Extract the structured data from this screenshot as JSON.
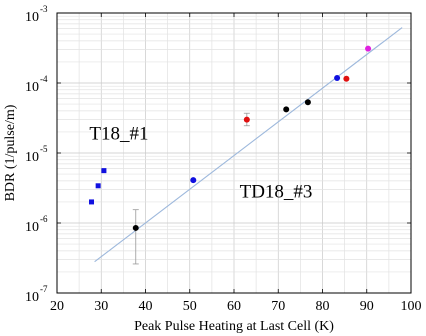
{
  "chart_data": {
    "type": "scatter",
    "xlabel": "Peak Pulse Heating at Last Cell (K)",
    "ylabel": "BDR (1/pulse/m)",
    "xlim": [
      20,
      100
    ],
    "ylim_log10": [
      -7,
      -3
    ],
    "y_scale": "log",
    "grid": true,
    "x_ticks": [
      "20",
      "30",
      "40",
      "50",
      "60",
      "70",
      "80",
      "90",
      "100"
    ],
    "y_ticks": [
      {
        "base": "10",
        "exp": "-3",
        "log10": -3
      },
      {
        "base": "10",
        "exp": "-4",
        "log10": -4
      },
      {
        "base": "10",
        "exp": "-5",
        "log10": -5
      },
      {
        "base": "10",
        "exp": "-6",
        "log10": -6
      },
      {
        "base": "10",
        "exp": "-7",
        "log10": -7
      }
    ],
    "annotations": [
      {
        "text": "T18_#1",
        "x": 34,
        "y": 1.55e-05
      },
      {
        "text": "TD18_#3",
        "x": 69.5,
        "y": 2.3e-06
      }
    ],
    "fit_line": {
      "x": [
        28.5,
        98
      ],
      "y": [
        2.8e-07,
        0.00062
      ],
      "color": "#9db8dc"
    },
    "series": [
      {
        "marker": "square",
        "color": "#1010e0",
        "points": [
          {
            "x": 27.8,
            "y": 2e-06
          },
          {
            "x": 29.3,
            "y": 3.4e-06
          },
          {
            "x": 30.6,
            "y": 5.6e-06
          }
        ]
      },
      {
        "marker": "circle",
        "color": "#000000",
        "points": [
          {
            "x": 37.8,
            "y": 8.5e-07,
            "ylow": 2.6e-07,
            "yhigh": 1.55e-06
          },
          {
            "x": 71.8,
            "y": 4.2e-05
          },
          {
            "x": 76.7,
            "y": 5.3e-05
          }
        ]
      },
      {
        "marker": "circle",
        "color": "#1010e0",
        "points": [
          {
            "x": 50.8,
            "y": 4.1e-06
          },
          {
            "x": 83.3,
            "y": 0.000118
          }
        ]
      },
      {
        "marker": "circle",
        "color": "#e01010",
        "points": [
          {
            "x": 62.9,
            "y": 3e-05,
            "ylow": 2.45e-05,
            "yhigh": 3.7e-05
          },
          {
            "x": 85.4,
            "y": 0.000115
          }
        ]
      },
      {
        "marker": "circle",
        "color": "#e020e0",
        "points": [
          {
            "x": 90.3,
            "y": 0.00031
          }
        ]
      }
    ]
  }
}
